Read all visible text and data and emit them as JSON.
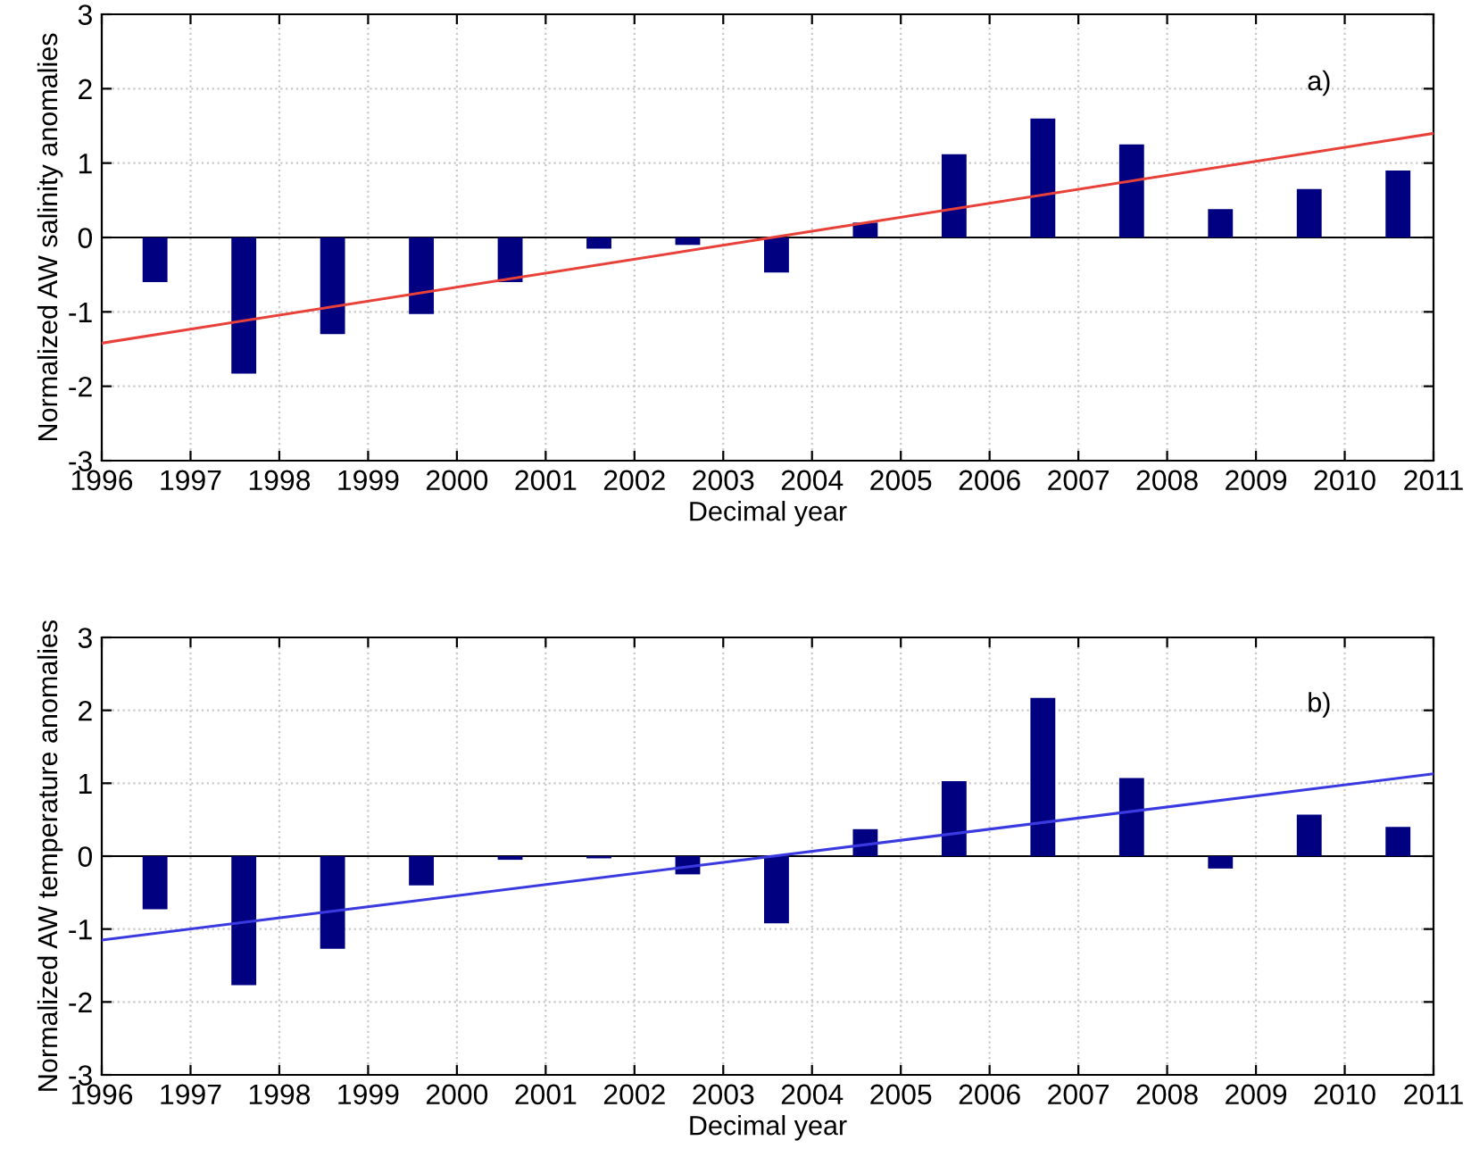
{
  "chart_data": [
    {
      "type": "bar",
      "xlabel": "Decimal year",
      "ylabel": "Normalized AW salinity anomalies",
      "annotations": [
        "a)"
      ],
      "xlim": [
        1996,
        2011
      ],
      "xticks": [
        1996,
        1997,
        1998,
        1999,
        2000,
        2001,
        2002,
        2003,
        2004,
        2005,
        2006,
        2007,
        2008,
        2009,
        2010,
        2011
      ],
      "ylim": [
        -3,
        3
      ],
      "yticks": [
        -3,
        -2,
        -1,
        0,
        1,
        2,
        3
      ],
      "grid": true,
      "legend": false,
      "ref_lines": [
        {
          "axis": "y",
          "value": 0,
          "color": "#000000"
        }
      ],
      "series": [
        {
          "color": "#000080",
          "x": [
            1996.6,
            1997.6,
            1998.6,
            1999.6,
            2000.6,
            2001.6,
            2002.6,
            2003.6,
            2004.6,
            2005.6,
            2006.6,
            2007.6,
            2008.6,
            2009.6,
            2010.6
          ],
          "values": [
            -0.6,
            -1.83,
            -1.3,
            -1.03,
            -0.6,
            -0.15,
            -0.1,
            -0.47,
            0.2,
            1.12,
            1.6,
            1.25,
            0.38,
            0.65,
            0.9
          ]
        },
        {
          "type": "line",
          "color": "#e8413a",
          "x": [
            1996,
            2011
          ],
          "values": [
            -1.42,
            1.4
          ]
        }
      ]
    },
    {
      "type": "bar",
      "xlabel": "Decimal year",
      "ylabel": "Normalized AW temperature anomalies",
      "annotations": [
        "b)"
      ],
      "xlim": [
        1996,
        2011
      ],
      "xticks": [
        1996,
        1997,
        1998,
        1999,
        2000,
        2001,
        2002,
        2003,
        2004,
        2005,
        2006,
        2007,
        2008,
        2009,
        2010,
        2011
      ],
      "ylim": [
        -3,
        3
      ],
      "yticks": [
        -3,
        -2,
        -1,
        0,
        1,
        2,
        3
      ],
      "grid": true,
      "legend": false,
      "ref_lines": [
        {
          "axis": "y",
          "value": 0,
          "color": "#000000"
        }
      ],
      "series": [
        {
          "color": "#000080",
          "x": [
            1996.6,
            1997.6,
            1998.6,
            1999.6,
            2000.6,
            2001.6,
            2002.6,
            2003.6,
            2004.6,
            2005.6,
            2006.6,
            2007.6,
            2008.6,
            2009.6,
            2010.6
          ],
          "values": [
            -0.73,
            -1.77,
            -1.27,
            -0.4,
            -0.05,
            -0.03,
            -0.25,
            -0.92,
            0.37,
            1.03,
            2.17,
            1.07,
            -0.17,
            0.57,
            0.4
          ]
        },
        {
          "type": "line",
          "color": "#3a3ae0",
          "x": [
            1996,
            2011
          ],
          "values": [
            -1.15,
            1.13
          ]
        }
      ]
    }
  ]
}
